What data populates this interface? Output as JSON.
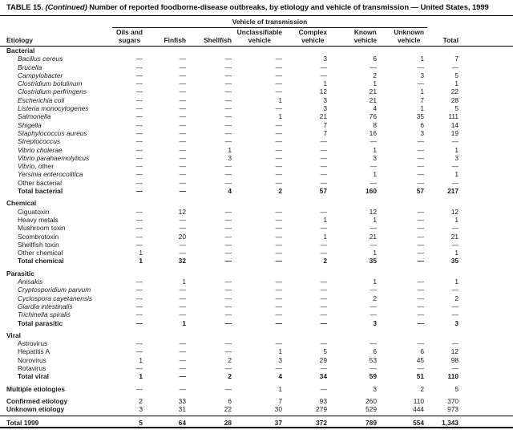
{
  "colors": {
    "background": "#ffffff",
    "text": "#1a1a1a",
    "rule": "#000000"
  },
  "title": {
    "prefix": "TABLE 15. ",
    "continued": "(Continued)",
    "rest": " Number of reported foodborne-disease outbreaks, by etiology and vehicle of transmission — United States, 1999"
  },
  "table": {
    "spanner": "Vehicle of transmission",
    "col_headers": [
      {
        "id": "etiology",
        "lines": [
          "Etiology"
        ]
      },
      {
        "id": "oils-and-sugars",
        "lines": [
          "Oils and",
          "sugars"
        ]
      },
      {
        "id": "finfish",
        "lines": [
          "Finfish"
        ]
      },
      {
        "id": "shellfish",
        "lines": [
          "Shellfish"
        ]
      },
      {
        "id": "unclassifiable-vehicle",
        "lines": [
          "Unclassifiable",
          "vehicle"
        ]
      },
      {
        "id": "complex-vehicle",
        "lines": [
          "Complex",
          "vehicle"
        ]
      },
      {
        "id": "known-vehicle",
        "lines": [
          "Known",
          "vehicle"
        ]
      },
      {
        "id": "unknown-vehicle",
        "lines": [
          "Unknown",
          "vehicle"
        ]
      },
      {
        "id": "total",
        "lines": [
          "Total"
        ]
      },
      {
        "id": "filler",
        "lines": []
      }
    ],
    "sections": [
      {
        "header": "Bacterial",
        "rows": [
          {
            "label": "Bacillus cereus",
            "italic": true,
            "values": [
              "—",
              "—",
              "—",
              "—",
              "3",
              "6",
              "1",
              "7"
            ]
          },
          {
            "label": "Brucella",
            "italic": true,
            "values": [
              "—",
              "—",
              "—",
              "—",
              "—",
              "—",
              "—",
              "—"
            ]
          },
          {
            "label": "Campylobacter",
            "italic": true,
            "values": [
              "—",
              "—",
              "—",
              "—",
              "—",
              "2",
              "3",
              "5"
            ]
          },
          {
            "label": "Clostridium botulinum",
            "italic": true,
            "values": [
              "—",
              "—",
              "—",
              "—",
              "1",
              "1",
              "—",
              "1"
            ]
          },
          {
            "label": "Clostridium perfringens",
            "italic": true,
            "values": [
              "—",
              "—",
              "—",
              "—",
              "12",
              "21",
              "1",
              "22"
            ]
          },
          {
            "label": "Escherichia coli",
            "italic": true,
            "values": [
              "—",
              "—",
              "—",
              "1",
              "3",
              "21",
              "7",
              "28"
            ]
          },
          {
            "label": "Listeria monocytogenes",
            "italic": true,
            "values": [
              "—",
              "—",
              "—",
              "—",
              "3",
              "4",
              "1",
              "5"
            ]
          },
          {
            "label": "Salmonella",
            "italic": true,
            "values": [
              "—",
              "—",
              "—",
              "1",
              "21",
              "76",
              "35",
              "111"
            ]
          },
          {
            "label": "Shigella",
            "italic": true,
            "values": [
              "—",
              "—",
              "—",
              "—",
              "7",
              "8",
              "6",
              "14"
            ]
          },
          {
            "label": "Staphylococcus aureus",
            "italic": true,
            "values": [
              "—",
              "—",
              "—",
              "—",
              "7",
              "16",
              "3",
              "19"
            ]
          },
          {
            "label": "Streptococcus",
            "italic": true,
            "values": [
              "—",
              "—",
              "—",
              "—",
              "—",
              "—",
              "—",
              "—"
            ]
          },
          {
            "label": "Vibrio cholerae",
            "italic": true,
            "values": [
              "—",
              "—",
              "1",
              "—",
              "—",
              "1",
              "—",
              "1"
            ]
          },
          {
            "label": "Vibrio parahaemolyticus",
            "italic": true,
            "values": [
              "—",
              "—",
              "3",
              "—",
              "—",
              "3",
              "—",
              "3"
            ]
          },
          {
            "label": "Vibrio",
            "suffix": ", other",
            "italic": true,
            "values": [
              "—",
              "—",
              "—",
              "—",
              "—",
              "—",
              "—",
              "—"
            ]
          },
          {
            "label": "Yersinia enterocolitica",
            "italic": true,
            "values": [
              "—",
              "—",
              "—",
              "—",
              "—",
              "1",
              "—",
              "1"
            ]
          },
          {
            "label": "Other bacterial",
            "values": [
              "—",
              "—",
              "—",
              "—",
              "—",
              "—",
              "—",
              "—"
            ]
          },
          {
            "label": "Total bacterial",
            "bold": true,
            "bold_vals": true,
            "values": [
              "—",
              "—",
              "4",
              "2",
              "57",
              "160",
              "57",
              "217"
            ]
          }
        ]
      },
      {
        "header": "Chemical",
        "rows": [
          {
            "label": "Ciguatoxin",
            "values": [
              "—",
              "12",
              "—",
              "—",
              "—",
              "12",
              "—",
              "12"
            ]
          },
          {
            "label": "Heavy metals",
            "values": [
              "—",
              "—",
              "—",
              "—",
              "1",
              "1",
              "—",
              "1"
            ]
          },
          {
            "label": "Mushroom toxin",
            "values": [
              "—",
              "—",
              "—",
              "—",
              "—",
              "—",
              "—",
              "—"
            ]
          },
          {
            "label": "Scombrotoxin",
            "values": [
              "—",
              "20",
              "—",
              "—",
              "1",
              "21",
              "—",
              "21"
            ]
          },
          {
            "label": "Shellfish toxin",
            "values": [
              "—",
              "—",
              "—",
              "—",
              "—",
              "—",
              "—",
              "—"
            ]
          },
          {
            "label": "Other chemical",
            "values": [
              "1",
              "—",
              "—",
              "—",
              "—",
              "1",
              "—",
              "1"
            ]
          },
          {
            "label": "Total chemical",
            "bold": true,
            "bold_vals": true,
            "values": [
              "1",
              "32",
              "—",
              "—",
              "2",
              "35",
              "—",
              "35"
            ]
          }
        ]
      },
      {
        "header": "Parasitic",
        "rows": [
          {
            "label": "Anisakis",
            "italic": true,
            "values": [
              "—",
              "1",
              "—",
              "—",
              "—",
              "1",
              "—",
              "1"
            ]
          },
          {
            "label": "Cryptosporidium parvum",
            "italic": true,
            "values": [
              "—",
              "—",
              "—",
              "—",
              "—",
              "—",
              "—",
              "—"
            ]
          },
          {
            "label": "Cyclospora cayetanensis",
            "italic": true,
            "values": [
              "—",
              "—",
              "—",
              "—",
              "—",
              "2",
              "—",
              "2"
            ]
          },
          {
            "label": "Giardia intestinalis",
            "italic": true,
            "values": [
              "—",
              "—",
              "—",
              "—",
              "—",
              "—",
              "—",
              "—"
            ]
          },
          {
            "label": "Trichinella spiralis",
            "italic": true,
            "values": [
              "—",
              "—",
              "—",
              "—",
              "—",
              "—",
              "—",
              "—"
            ]
          },
          {
            "label": "Total parasitic",
            "bold": true,
            "bold_vals": true,
            "values": [
              "—",
              "1",
              "—",
              "—",
              "—",
              "3",
              "—",
              "3"
            ]
          }
        ]
      },
      {
        "header": "Viral",
        "rows": [
          {
            "label": "Astrovirus",
            "values": [
              "—",
              "—",
              "—",
              "—",
              "—",
              "—",
              "—",
              "—"
            ]
          },
          {
            "label": "Hepatitis A",
            "values": [
              "—",
              "—",
              "—",
              "1",
              "5",
              "6",
              "6",
              "12"
            ]
          },
          {
            "label": "Norovirus",
            "values": [
              "1",
              "—",
              "2",
              "3",
              "29",
              "53",
              "45",
              "98"
            ]
          },
          {
            "label": "Rotavirus",
            "values": [
              "—",
              "—",
              "—",
              "—",
              "—",
              "—",
              "—",
              "—"
            ]
          },
          {
            "label": "Total viral",
            "bold": true,
            "bold_vals": true,
            "values": [
              "1",
              "—",
              "2",
              "4",
              "34",
              "59",
              "51",
              "110"
            ]
          }
        ]
      }
    ],
    "footer_rows": [
      {
        "label": "Multiple etiologies",
        "bold": true,
        "gap_before": 0,
        "values": [
          "—",
          "—",
          "—",
          "1",
          "—",
          "3",
          "2",
          "5"
        ]
      },
      {
        "label": "Confirmed etiology",
        "bold": true,
        "gap_before": 5,
        "values": [
          "2",
          "33",
          "6",
          "7",
          "93",
          "260",
          "110",
          "370"
        ]
      },
      {
        "label": "Unknown etiology",
        "bold": true,
        "gap_before": 0,
        "values": [
          "3",
          "31",
          "22",
          "30",
          "279",
          "529",
          "444",
          "973"
        ]
      },
      {
        "label": "Total 1999",
        "bold": true,
        "bold_vals": true,
        "grand": true,
        "gap_before": 3,
        "values": [
          "5",
          "64",
          "28",
          "37",
          "372",
          "789",
          "554",
          "1,343"
        ]
      }
    ]
  }
}
